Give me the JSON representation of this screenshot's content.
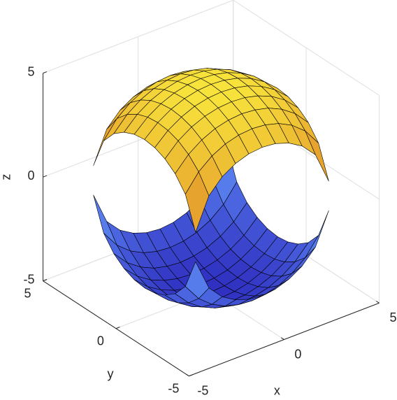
{
  "chart_data": {
    "type": "surface",
    "xlabel": "x",
    "ylabel": "y",
    "zlabel": "z",
    "xlim": [
      -5,
      5
    ],
    "ylim": [
      -5,
      5
    ],
    "zlim": [
      -5,
      5
    ],
    "xticks": [
      -5,
      0,
      5
    ],
    "yticks": [
      -5,
      0,
      5
    ],
    "zticks": [
      -5,
      0,
      5
    ],
    "view": [
      -37.5,
      30
    ],
    "grid": true,
    "clim": [
      -5,
      5
    ],
    "colormap": [
      "#2f2fc0",
      "#5b86f2",
      "#e49a2c",
      "#f8e43c"
    ],
    "edge_color": "#000000",
    "x": [
      -3.5,
      -2.8,
      -2.1,
      -1.4,
      -0.7,
      0,
      0.7,
      1.4,
      2.1,
      2.8,
      3.5
    ],
    "y": [
      -3.5,
      -2.8,
      -2.1,
      -1.4,
      -0.7,
      0,
      0.7,
      1.4,
      2.1,
      2.8,
      3.5
    ],
    "series": [
      {
        "z": [
          [
            0.71,
            2.22,
            2.89,
            3.28,
            3.5,
            3.57,
            3.5,
            3.28,
            2.89,
            2.22,
            0.71
          ],
          [
            2.22,
            3.05,
            3.57,
            3.9,
            4.08,
            4.14,
            4.08,
            3.9,
            3.57,
            3.05,
            2.22
          ],
          [
            2.89,
            3.57,
            4.02,
            4.32,
            4.48,
            4.54,
            4.48,
            4.32,
            4.02,
            3.57,
            2.89
          ],
          [
            3.28,
            3.9,
            4.32,
            4.59,
            4.75,
            4.8,
            4.75,
            4.59,
            4.32,
            3.9,
            3.28
          ],
          [
            3.5,
            4.08,
            4.48,
            4.75,
            4.9,
            4.95,
            4.9,
            4.75,
            4.48,
            4.08,
            3.5
          ],
          [
            3.57,
            4.14,
            4.54,
            4.8,
            4.95,
            5,
            4.95,
            4.8,
            4.54,
            4.14,
            3.57
          ],
          [
            3.5,
            4.08,
            4.48,
            4.75,
            4.9,
            4.95,
            4.9,
            4.75,
            4.48,
            4.08,
            3.5
          ],
          [
            3.28,
            3.9,
            4.32,
            4.59,
            4.75,
            4.8,
            4.75,
            4.59,
            4.32,
            3.9,
            3.28
          ],
          [
            2.89,
            3.57,
            4.02,
            4.32,
            4.48,
            4.54,
            4.48,
            4.32,
            4.02,
            3.57,
            2.89
          ],
          [
            2.22,
            3.05,
            3.57,
            3.9,
            4.08,
            4.14,
            4.08,
            3.9,
            3.57,
            3.05,
            2.22
          ],
          [
            0.71,
            2.22,
            2.89,
            3.28,
            3.5,
            3.57,
            3.5,
            3.28,
            2.89,
            2.22,
            0.71
          ]
        ]
      },
      {
        "z": [
          [
            -0.71,
            -2.22,
            -2.89,
            -3.28,
            -3.5,
            -3.57,
            -3.5,
            -3.28,
            -2.89,
            -2.22,
            -0.71
          ],
          [
            -2.22,
            -3.05,
            -3.57,
            -3.9,
            -4.08,
            -4.14,
            -4.08,
            -3.9,
            -3.57,
            -3.05,
            -2.22
          ],
          [
            -2.89,
            -3.57,
            -4.02,
            -4.32,
            -4.48,
            -4.54,
            -4.48,
            -4.32,
            -4.02,
            -3.57,
            -2.89
          ],
          [
            -3.28,
            -3.9,
            -4.32,
            -4.59,
            -4.75,
            -4.8,
            -4.75,
            -4.59,
            -4.32,
            -3.9,
            -3.28
          ],
          [
            -3.5,
            -4.08,
            -4.48,
            -4.75,
            -4.9,
            -4.95,
            -4.9,
            -4.75,
            -4.48,
            -4.08,
            -3.5
          ],
          [
            -3.57,
            -4.14,
            -4.54,
            -4.8,
            -4.95,
            -5,
            -4.95,
            -4.8,
            -4.54,
            -4.14,
            -3.57
          ],
          [
            -3.5,
            -4.08,
            -4.48,
            -4.75,
            -4.9,
            -4.95,
            -4.9,
            -4.75,
            -4.48,
            -4.08,
            -3.5
          ],
          [
            -3.28,
            -3.9,
            -4.32,
            -4.59,
            -4.75,
            -4.8,
            -4.75,
            -4.59,
            -4.32,
            -3.9,
            -3.28
          ],
          [
            -2.89,
            -3.57,
            -4.02,
            -4.32,
            -4.48,
            -4.54,
            -4.48,
            -4.32,
            -4.02,
            -3.57,
            -2.89
          ],
          [
            -2.22,
            -3.05,
            -3.57,
            -3.9,
            -4.08,
            -4.14,
            -4.08,
            -3.9,
            -3.57,
            -3.05,
            -2.22
          ],
          [
            -0.71,
            -2.22,
            -2.89,
            -3.28,
            -3.5,
            -3.57,
            -3.5,
            -3.28,
            -2.89,
            -2.22,
            -0.71
          ]
        ]
      }
    ]
  }
}
